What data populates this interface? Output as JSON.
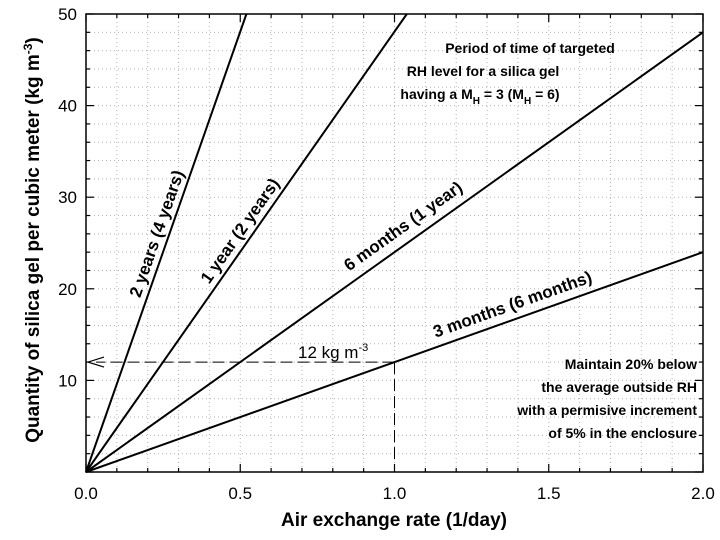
{
  "chart_data": {
    "type": "line",
    "title": "",
    "xlabel": "Air exchange rate (1/day)",
    "ylabel": {
      "main": "Quantity of silica gel per cubic meter (kg m",
      "sup": "-3",
      "tail": ")"
    },
    "xlim": [
      0,
      2
    ],
    "ylim": [
      0,
      50
    ],
    "x_ticks": [
      "0.0",
      "0.5",
      "1.0",
      "1.5",
      "2.0"
    ],
    "y_ticks": [
      "10",
      "20",
      "30",
      "40",
      "50"
    ],
    "grid": "dotted",
    "series": [
      {
        "name": "2 years (4 years)",
        "x": [
          0,
          0.52
        ],
        "y": [
          0,
          50
        ]
      },
      {
        "name": "1 year (2 years)",
        "x": [
          0,
          1.04
        ],
        "y": [
          0,
          50
        ]
      },
      {
        "name": "6 months (1 year)",
        "x": [
          0,
          2.0
        ],
        "y": [
          0,
          48
        ]
      },
      {
        "name": "3 months (6 months)",
        "x": [
          0,
          2.0
        ],
        "y": [
          0,
          24
        ]
      }
    ],
    "reference": {
      "x": 1.0,
      "y": 12,
      "label_main": "12 kg m",
      "label_sup": "-3"
    },
    "annotations": {
      "period_lines": [
        "Period of time of targeted",
        "RH level for a silica gel",
        {
          "a": "having a M",
          "s1": "H",
          "b": " = 3 (M",
          "s2": "H",
          "c": " = 6)"
        }
      ],
      "maintain_lines": [
        "Maintain 20% below",
        "the average outside RH",
        "with a permisive increment",
        "of 5% in the enclosure"
      ]
    }
  }
}
